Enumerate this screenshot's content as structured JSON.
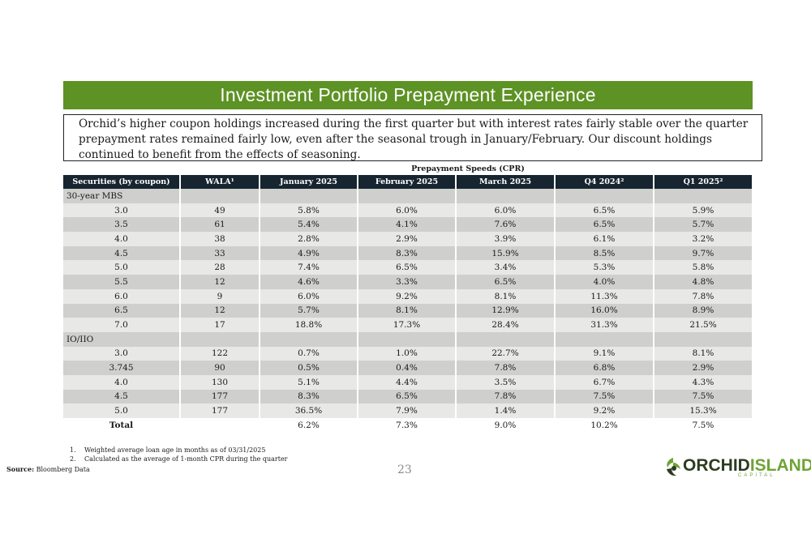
{
  "slide": {
    "title": "Investment Portfolio Prepayment Experience",
    "summary": "Orchid’s higher coupon holdings increased during the first quarter but with interest rates fairly stable over the quarter prepayment rates remained fairly low, even after the seasonal trough in January/February.  Our discount holdings continued to benefit from the effects of seasoning.",
    "page_number": "23"
  },
  "table": {
    "group_header": "Prepayment Speeds (CPR)",
    "columns": [
      "Securities (by coupon)",
      "WALA¹",
      "January 2025",
      "February 2025",
      "March 2025",
      "Q4 2024²",
      "Q1 2025²"
    ],
    "sections": [
      {
        "label": "30-year MBS",
        "rows": [
          [
            "3.0",
            "49",
            "5.8%",
            "6.0%",
            "6.0%",
            "6.5%",
            "5.9%"
          ],
          [
            "3.5",
            "61",
            "5.4%",
            "4.1%",
            "7.6%",
            "6.5%",
            "5.7%"
          ],
          [
            "4.0",
            "38",
            "2.8%",
            "2.9%",
            "3.9%",
            "6.1%",
            "3.2%"
          ],
          [
            "4.5",
            "33",
            "4.9%",
            "8.3%",
            "15.9%",
            "8.5%",
            "9.7%"
          ],
          [
            "5.0",
            "28",
            "7.4%",
            "6.5%",
            "3.4%",
            "5.3%",
            "5.8%"
          ],
          [
            "5.5",
            "12",
            "4.6%",
            "3.3%",
            "6.5%",
            "4.0%",
            "4.8%"
          ],
          [
            "6.0",
            "9",
            "6.0%",
            "9.2%",
            "8.1%",
            "11.3%",
            "7.8%"
          ],
          [
            "6.5",
            "12",
            "5.7%",
            "8.1%",
            "12.9%",
            "16.0%",
            "8.9%"
          ],
          [
            "7.0",
            "17",
            "18.8%",
            "17.3%",
            "28.4%",
            "31.3%",
            "21.5%"
          ]
        ]
      },
      {
        "label": "IO/IIO",
        "rows": [
          [
            "3.0",
            "122",
            "0.7%",
            "1.0%",
            "22.7%",
            "9.1%",
            "8.1%"
          ],
          [
            "3.745",
            "90",
            "0.5%",
            "0.4%",
            "7.8%",
            "6.8%",
            "2.9%"
          ],
          [
            "4.0",
            "130",
            "5.1%",
            "4.4%",
            "3.5%",
            "6.7%",
            "4.3%"
          ],
          [
            "4.5",
            "177",
            "8.3%",
            "6.5%",
            "7.8%",
            "7.5%",
            "7.5%"
          ],
          [
            "5.0",
            "177",
            "36.5%",
            "7.9%",
            "1.4%",
            "9.2%",
            "15.3%"
          ]
        ]
      }
    ],
    "total": {
      "label": "Total",
      "values": [
        "",
        "6.2%",
        "7.3%",
        "9.0%",
        "10.2%",
        "7.5%"
      ]
    }
  },
  "footnotes": [
    {
      "num": "1.",
      "text": "Weighted average loan age in months as of 03/31/2025"
    },
    {
      "num": "2.",
      "text": "Calculated as the average of 1-month CPR during the quarter"
    }
  ],
  "source": {
    "label": "Source:",
    "text": "Bloomberg Data"
  },
  "logo": {
    "word_1": "ORCHID",
    "word_2": "ISLAND",
    "sub": "CAPITAL",
    "icon": "orchid-flower-icon"
  },
  "colors": {
    "banner": "#5d9224",
    "header": "#16252f",
    "band_light": "#e8e8e6",
    "band_dark": "#cfcfcd",
    "logo_green": "#6fa336"
  }
}
